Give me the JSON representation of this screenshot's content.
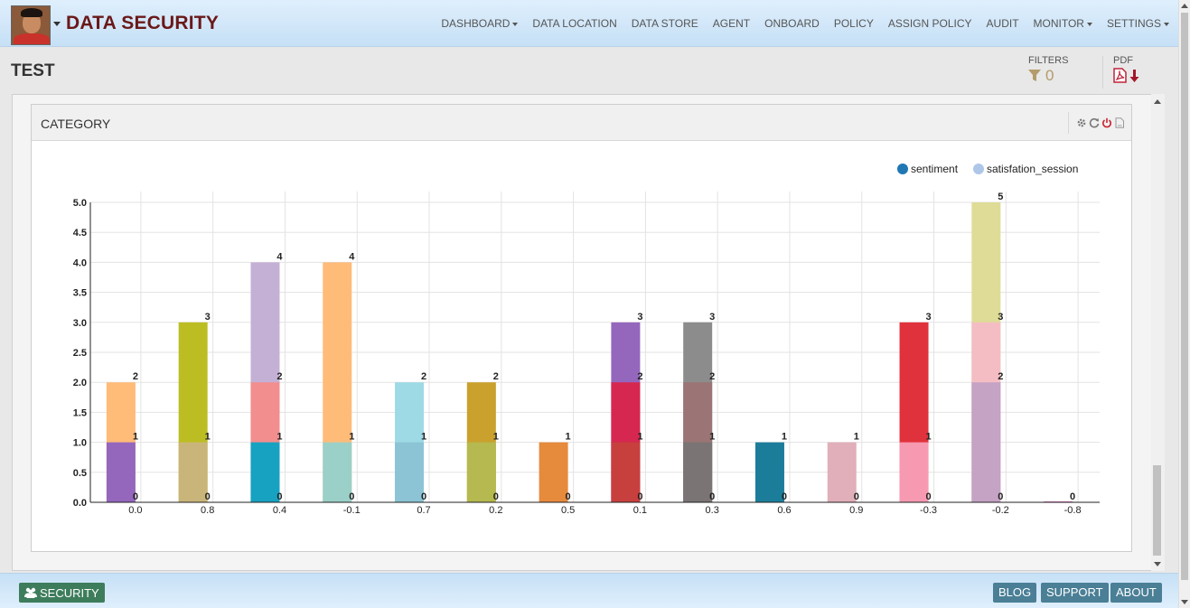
{
  "header": {
    "brand": "DATA SECURITY",
    "nav": [
      {
        "label": "DASHBOARD",
        "dropdown": true
      },
      {
        "label": "DATA LOCATION",
        "dropdown": false
      },
      {
        "label": "DATA STORE",
        "dropdown": false
      },
      {
        "label": "AGENT",
        "dropdown": false
      },
      {
        "label": "ONBOARD",
        "dropdown": false
      },
      {
        "label": "POLICY",
        "dropdown": false
      },
      {
        "label": "ASSIGN POLICY",
        "dropdown": false
      },
      {
        "label": "AUDIT",
        "dropdown": false
      },
      {
        "label": "MONITOR",
        "dropdown": true
      },
      {
        "label": "SETTINGS",
        "dropdown": true
      }
    ]
  },
  "page": {
    "title": "TEST",
    "filters_label": "FILTERS",
    "filters_count": "0",
    "pdf_label": "PDF"
  },
  "card": {
    "title": "CATEGORY",
    "tools": [
      "gear-icon",
      "refresh-icon",
      "power-icon",
      "file-icon"
    ]
  },
  "chart_data": {
    "type": "bar",
    "stacked": true,
    "title": "",
    "xlabel": "",
    "ylabel": "",
    "ylim": [
      0,
      5
    ],
    "yticks": [
      "0.0",
      "0.5",
      "1.0",
      "1.5",
      "2.0",
      "2.5",
      "3.0",
      "3.5",
      "4.0",
      "4.5",
      "5.0"
    ],
    "legend": {
      "placement": "top-right",
      "entries": [
        {
          "name": "sentiment",
          "color": "#1f77b4"
        },
        {
          "name": "satisfation_session",
          "color": "#aec7e8"
        }
      ]
    },
    "grid": true,
    "categories": [
      "0.0",
      "0.8",
      "0.4",
      "-0.1",
      "0.7",
      "0.2",
      "0.5",
      "0.1",
      "0.3",
      "0.6",
      "0.9",
      "-0.3",
      "-0.2",
      "-0.8"
    ],
    "segments": [
      [
        {
          "value": 1,
          "color": "#9467bd"
        },
        {
          "value": 2,
          "color": "#ffbb78"
        }
      ],
      [
        {
          "value": 1,
          "color": "#c9b57a"
        },
        {
          "value": 3,
          "color": "#bcbd22"
        }
      ],
      [
        {
          "value": 1,
          "color": "#17a2c2"
        },
        {
          "value": 2,
          "color": "#f28e8e"
        },
        {
          "value": 4,
          "color": "#c5b0d5"
        }
      ],
      [
        {
          "value": 1,
          "color": "#9ad0c7"
        },
        {
          "value": 4,
          "color": "#ffbb78"
        }
      ],
      [
        {
          "value": 1,
          "color": "#8cc4d6"
        },
        {
          "value": 2,
          "color": "#9edae5"
        }
      ],
      [
        {
          "value": 1,
          "color": "#b5b94f"
        },
        {
          "value": 2,
          "color": "#c9a12c"
        }
      ],
      [
        {
          "value": 1,
          "color": "#e68a3c"
        }
      ],
      [
        {
          "value": 1,
          "color": "#c7403e"
        },
        {
          "value": 2,
          "color": "#d62750"
        },
        {
          "value": 3,
          "color": "#9467bd"
        }
      ],
      [
        {
          "value": 1,
          "color": "#7a7474"
        },
        {
          "value": 2,
          "color": "#9b7575"
        },
        {
          "value": 3,
          "color": "#8c8c8c"
        }
      ],
      [
        {
          "value": 1,
          "color": "#1c7d9b"
        }
      ],
      [
        {
          "value": 1,
          "color": "#e1afb9"
        }
      ],
      [
        {
          "value": 1,
          "color": "#f799b1"
        },
        {
          "value": 3,
          "color": "#e0323c"
        }
      ],
      [
        {
          "value": 2,
          "color": "#c5a3c5"
        },
        {
          "value": 3,
          "color": "#f4bdc4"
        },
        {
          "value": 5,
          "color": "#dedc96"
        }
      ],
      [
        {
          "value": 0,
          "color": "#e377c2"
        }
      ]
    ],
    "labels": [
      [
        "0",
        "1",
        "2"
      ],
      [
        "0",
        "1",
        "3"
      ],
      [
        "0",
        "1",
        "2",
        "4"
      ],
      [
        "0",
        "1",
        "4"
      ],
      [
        "0",
        "1",
        "2"
      ],
      [
        "0",
        "1",
        "2"
      ],
      [
        "0",
        "1"
      ],
      [
        "0",
        "1",
        "2",
        "3"
      ],
      [
        "0",
        "1",
        "2",
        "3"
      ],
      [
        "0",
        "1"
      ],
      [
        "0",
        "1"
      ],
      [
        "0",
        "1",
        "3"
      ],
      [
        "0",
        "2",
        "3",
        "5"
      ],
      [
        "0"
      ]
    ]
  },
  "footer": {
    "security_label": "SECURITY",
    "blog_label": "BLOG",
    "support_label": "SUPPORT",
    "about_label": "ABOUT"
  }
}
